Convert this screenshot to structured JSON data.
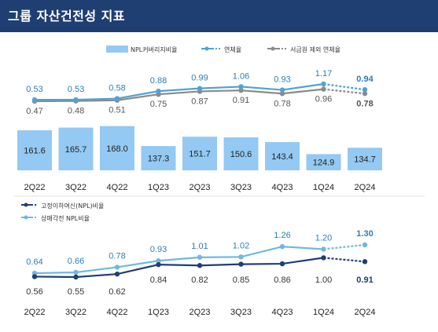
{
  "header": {
    "title": "그룹 자산건전성 지표"
  },
  "colors": {
    "header_bg": "#1f3f73",
    "bar": "#93c9f2",
    "line_light": "#4ea3d4",
    "line_gray": "#8a8a8a",
    "line_navy": "#1f3f73",
    "line_sky": "#6fb8e0",
    "label_blue": "#2b7fb8",
    "label_dark": "#333333"
  },
  "chart_data": [
    {
      "type": "bar",
      "title": "",
      "categories": [
        "2Q22",
        "3Q22",
        "4Q22",
        "1Q23",
        "2Q23",
        "3Q23",
        "4Q23",
        "1Q24",
        "2Q24"
      ],
      "legend": [
        "NPL커버리지비율",
        "연체율",
        "서금원 제외 연체율"
      ],
      "series": [
        {
          "name": "NPL커버리지비율",
          "type": "bar",
          "values": [
            161.6,
            165.7,
            168.0,
            137.3,
            151.7,
            150.6,
            143.4,
            124.9,
            134.7
          ]
        },
        {
          "name": "연체율",
          "type": "line",
          "values": [
            0.53,
            0.53,
            0.58,
            0.88,
            0.99,
            1.06,
            0.93,
            1.17,
            0.94
          ]
        },
        {
          "name": "서금원 제외 연체율",
          "type": "line",
          "values": [
            0.47,
            0.48,
            0.51,
            0.75,
            0.87,
            0.91,
            0.78,
            0.96,
            0.78
          ]
        }
      ],
      "ylim_bar": [
        0,
        200
      ],
      "ylim_line": [
        0.3,
        1.4
      ],
      "legend_position": "top"
    },
    {
      "type": "line",
      "title": "",
      "categories": [
        "2Q22",
        "3Q22",
        "4Q22",
        "1Q23",
        "2Q23",
        "3Q23",
        "4Q23",
        "1Q24",
        "2Q24"
      ],
      "legend": [
        "고정이하여신(NPL)비율",
        "상매각전 NPL비율"
      ],
      "series": [
        {
          "name": "고정이하여신(NPL)비율",
          "values": [
            0.56,
            0.55,
            0.62,
            0.84,
            0.82,
            0.85,
            0.86,
            1.0,
            0.91
          ]
        },
        {
          "name": "상매각전 NPL비율",
          "values": [
            0.64,
            0.66,
            0.78,
            0.93,
            1.01,
            1.02,
            1.26,
            1.2,
            1.3
          ]
        }
      ],
      "legend_position": "top-left"
    }
  ]
}
